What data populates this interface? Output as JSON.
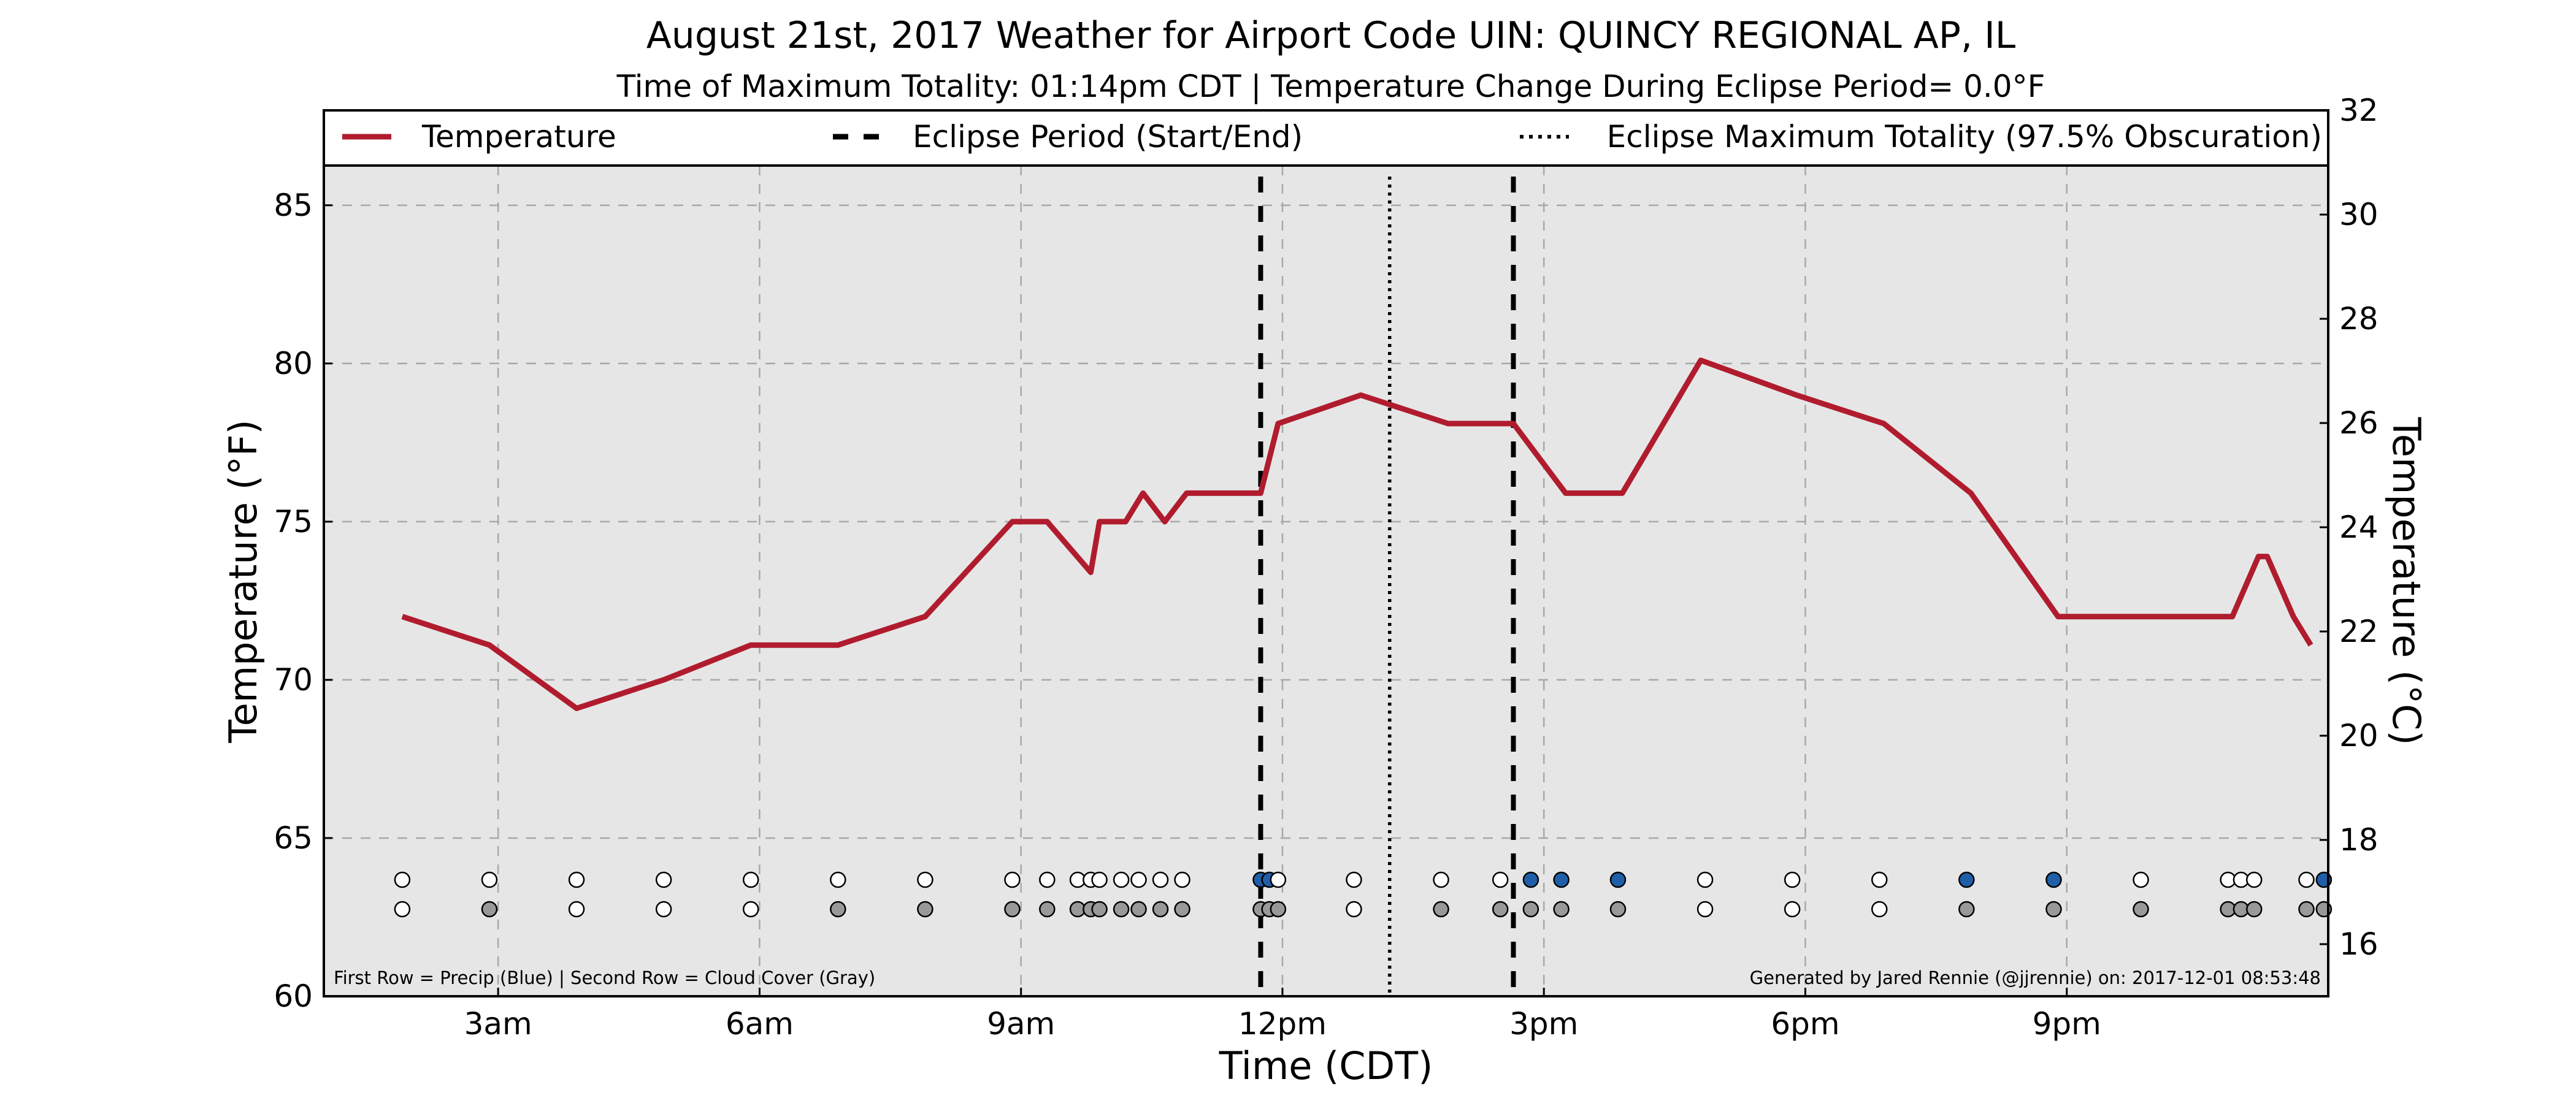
{
  "chart_data": {
    "type": "line",
    "title": "August 21st, 2017 Weather for Airport Code UIN: QUINCY REGIONAL AP, IL",
    "subtitle": "Time of Maximum Totality: 01:14pm CDT | Temperature Change During Eclipse Period= 0.0°F",
    "xlabel": "Time (CDT)",
    "ylabel": "Temperature (°F)",
    "ylabel_right": "Temperature (°C)",
    "x_unit": "hours (CDT)",
    "xlim": [
      1,
      24
    ],
    "ylim": [
      60,
      88
    ],
    "ylim_right": [
      15,
      32
    ],
    "x_ticks": [
      {
        "value": 3,
        "label": "3am"
      },
      {
        "value": 6,
        "label": "6am"
      },
      {
        "value": 9,
        "label": "9am"
      },
      {
        "value": 12,
        "label": "12pm"
      },
      {
        "value": 15,
        "label": "3pm"
      },
      {
        "value": 18,
        "label": "6pm"
      },
      {
        "value": 21,
        "label": "9pm"
      }
    ],
    "y_ticks": [
      "60",
      "65",
      "70",
      "75",
      "80",
      "85"
    ],
    "y_ticks_right": [
      "16",
      "18",
      "20",
      "22",
      "24",
      "26",
      "28",
      "30",
      "32"
    ],
    "grid": true,
    "legend": {
      "placement": "top",
      "entries": [
        {
          "label": "Temperature",
          "style": "solid",
          "color": "#b01c2e"
        },
        {
          "label": "Eclipse Period (Start/End)",
          "style": "dashed",
          "color": "#000000"
        },
        {
          "label": "Eclipse Maximum Totality (97.5% Obscuration)",
          "style": "dotted",
          "color": "#000000"
        }
      ]
    },
    "series": [
      {
        "name": "Temperature",
        "color": "#b01c2e",
        "x": [
          1.9,
          2.9,
          3.9,
          4.9,
          5.9,
          6.9,
          7.9,
          8.9,
          9.3,
          9.8,
          9.9,
          10.2,
          10.4,
          10.65,
          10.9,
          11.2,
          11.75,
          11.95,
          12.9,
          13.9,
          14.55,
          14.65,
          15.25,
          15.9,
          16.8,
          17.9,
          18.9,
          19.9,
          20.9,
          21.9,
          22.9,
          23.2,
          23.3,
          23.6,
          23.8
        ],
        "y": [
          72,
          71.1,
          69.1,
          70,
          71.1,
          71.1,
          72,
          75,
          75,
          73.4,
          75,
          75,
          75.9,
          75,
          75.9,
          75.9,
          75.9,
          78.1,
          79,
          78.1,
          78.1,
          78.1,
          75.9,
          75.9,
          80.1,
          79,
          78.1,
          75.9,
          72,
          72,
          72,
          73.9,
          73.9,
          72,
          71.1
        ]
      }
    ],
    "eclipse_period": [
      11.75,
      14.65
    ],
    "eclipse_maximum": 13.23,
    "markers": {
      "row1_name": "Precip",
      "row2_name": "Cloud Cover",
      "precip_color": "#1f5fa8",
      "cloud_color": "#999999",
      "clear_color": "#ffffff",
      "row1_x": [
        1.9,
        2.9,
        3.9,
        4.9,
        5.9,
        6.9,
        7.9,
        8.9,
        9.3,
        9.65,
        9.8,
        9.9,
        10.15,
        10.35,
        10.6,
        10.85,
        11.75,
        11.85,
        11.95,
        12.82,
        13.82,
        14.5,
        14.85,
        15.2,
        15.85,
        16.85,
        17.85,
        18.85,
        19.85,
        20.85,
        21.85,
        22.85,
        23.0,
        23.15,
        23.75,
        23.95
      ],
      "row1_precip": [
        false,
        false,
        false,
        false,
        false,
        false,
        false,
        false,
        false,
        false,
        false,
        false,
        false,
        false,
        false,
        false,
        true,
        true,
        false,
        false,
        false,
        false,
        true,
        true,
        true,
        false,
        false,
        false,
        true,
        true,
        false,
        false,
        false,
        false,
        false,
        true
      ],
      "row2_x": [
        1.9,
        2.9,
        3.9,
        4.9,
        5.9,
        6.9,
        7.9,
        8.9,
        9.3,
        9.65,
        9.8,
        9.9,
        10.15,
        10.35,
        10.6,
        10.85,
        11.75,
        11.85,
        11.95,
        12.82,
        13.82,
        14.5,
        14.85,
        15.2,
        15.85,
        16.85,
        17.85,
        18.85,
        19.85,
        20.85,
        21.85,
        22.85,
        23.0,
        23.15,
        23.75,
        23.95
      ],
      "row2_cloudy": [
        false,
        true,
        false,
        false,
        false,
        true,
        true,
        true,
        true,
        true,
        true,
        true,
        true,
        true,
        true,
        true,
        true,
        true,
        true,
        false,
        true,
        true,
        true,
        true,
        true,
        false,
        false,
        false,
        true,
        true,
        true,
        true,
        true,
        true,
        true,
        true
      ]
    },
    "footnote_left": "First Row = Precip (Blue) | Second Row = Cloud Cover (Gray)",
    "footnote_right": "Generated by Jared Rennie (@jjrennie) on: 2017-12-01 08:53:48"
  }
}
